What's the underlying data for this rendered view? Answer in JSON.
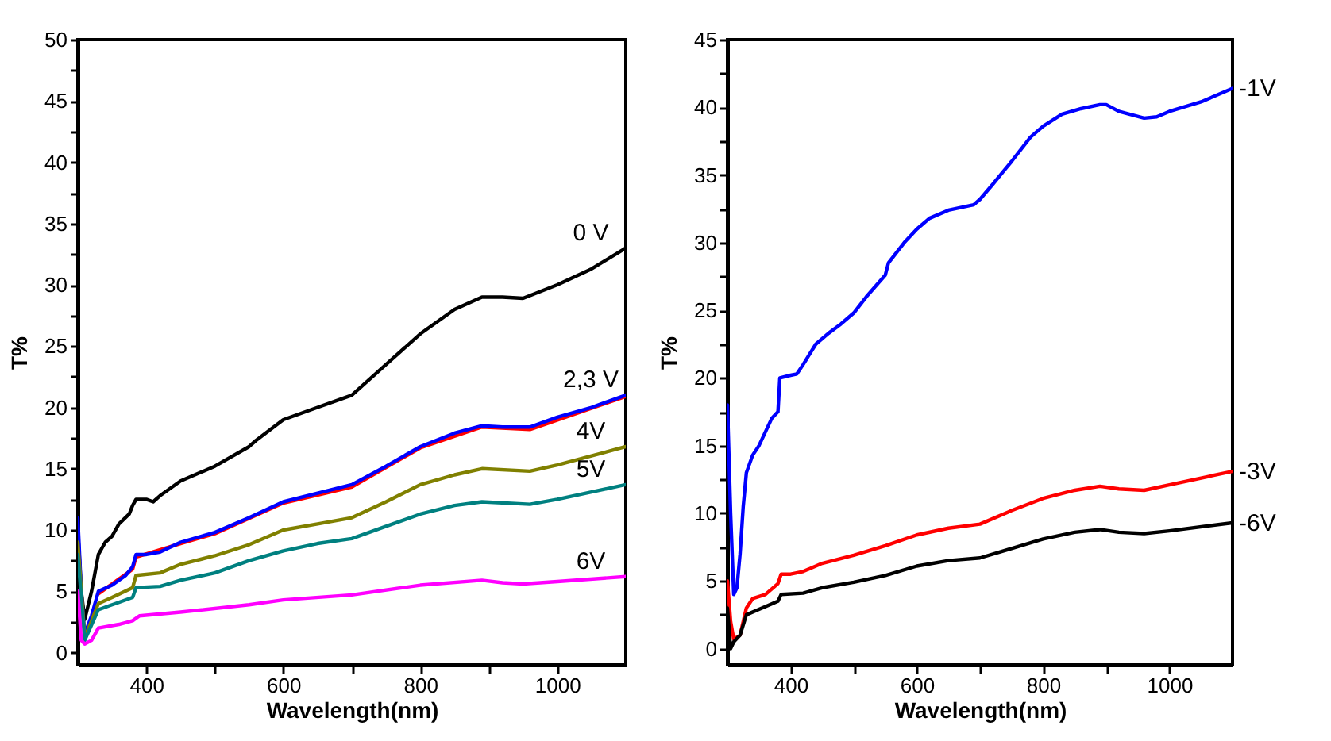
{
  "chart_data": [
    {
      "type": "line",
      "xlabel": "Wavelength(nm)",
      "ylabel": "T%",
      "xlim": [
        300,
        1100
      ],
      "ylim": [
        -1,
        50
      ],
      "xticks": [
        400,
        {
          "value": 500,
          "label": null
        },
        600,
        {
          "value": 700,
          "label": null
        },
        800,
        {
          "value": 900,
          "label": null
        },
        1000
      ],
      "yticks": [
        0,
        {
          "value": 2.5,
          "label": null
        },
        5,
        {
          "value": 7.5,
          "label": null
        },
        10,
        {
          "value": 12.5,
          "label": null
        },
        15,
        {
          "value": 17.5,
          "label": null
        },
        20,
        {
          "value": 22.5,
          "label": null
        },
        25,
        {
          "value": 27.5,
          "label": null
        },
        30,
        {
          "value": 32.5,
          "label": null
        },
        35,
        {
          "value": 37.5,
          "label": null
        },
        40,
        {
          "value": 42.5,
          "label": null
        },
        45,
        {
          "value": 47.5,
          "label": null
        },
        50
      ],
      "grid": false,
      "legend": false,
      "series": [
        {
          "name": "0 V",
          "color": "#000000",
          "x": [
            300,
            305,
            310,
            320,
            330,
            340,
            350,
            360,
            375,
            380,
            385,
            400,
            410,
            420,
            450,
            500,
            550,
            560,
            600,
            650,
            700,
            750,
            800,
            850,
            890,
            920,
            950,
            1000,
            1050,
            1100
          ],
          "values": [
            10,
            5,
            2.7,
            5,
            8,
            9,
            9.5,
            10.5,
            11.3,
            12,
            12.5,
            12.5,
            12.3,
            12.8,
            14,
            15.2,
            16.8,
            17.3,
            19,
            20,
            21,
            23.5,
            26,
            28,
            29,
            29,
            28.9,
            30,
            31.3,
            33
          ]
        },
        {
          "color": "#ff0000",
          "x": [
            330,
            380,
            385,
            450,
            500,
            600,
            700,
            800,
            890,
            960,
            1100
          ],
          "values": [
            4.8,
            6.8,
            7.8,
            8.9,
            9.7,
            12.2,
            13.5,
            16.7,
            18.4,
            18.2,
            20.9
          ]
        },
        {
          "name": "2,3 V",
          "color": "#0000ff",
          "x": [
            300,
            305,
            310,
            320,
            330,
            350,
            370,
            380,
            385,
            400,
            420,
            450,
            500,
            550,
            600,
            650,
            700,
            750,
            800,
            850,
            890,
            920,
            960,
            1000,
            1050,
            1100
          ],
          "values": [
            11,
            5,
            1.5,
            3,
            5,
            5.5,
            6.3,
            7,
            8,
            8,
            8.2,
            9,
            9.8,
            11,
            12.3,
            13,
            13.7,
            15.2,
            16.8,
            17.9,
            18.5,
            18.4,
            18.4,
            19.2,
            20,
            21
          ]
        },
        {
          "name": "4V",
          "color": "#808000",
          "x": [
            300,
            310,
            330,
            350,
            380,
            385,
            420,
            450,
            500,
            550,
            600,
            650,
            700,
            750,
            800,
            850,
            890,
            960,
            1000,
            1100
          ],
          "values": [
            9,
            1.2,
            4,
            4.5,
            5.3,
            6.3,
            6.5,
            7.2,
            7.9,
            8.8,
            10,
            10.5,
            11,
            12.3,
            13.7,
            14.5,
            15,
            14.8,
            15.3,
            16.8
          ]
        },
        {
          "name": "5V",
          "color": "#008080",
          "x": [
            300,
            310,
            330,
            350,
            380,
            385,
            420,
            450,
            500,
            550,
            600,
            650,
            700,
            750,
            800,
            850,
            890,
            960,
            1000,
            1100
          ],
          "values": [
            8,
            1,
            3.5,
            3.9,
            4.5,
            5.3,
            5.4,
            5.9,
            6.5,
            7.5,
            8.3,
            8.9,
            9.3,
            10.3,
            11.3,
            12,
            12.3,
            12.1,
            12.5,
            13.7
          ]
        },
        {
          "name": "6V",
          "color": "#ff00ff",
          "x": [
            300,
            305,
            310,
            320,
            330,
            360,
            380,
            390,
            450,
            550,
            600,
            700,
            800,
            890,
            920,
            950,
            1000,
            1100
          ],
          "values": [
            5,
            1,
            0.7,
            1,
            2,
            2.3,
            2.6,
            3,
            3.3,
            3.9,
            4.3,
            4.7,
            5.5,
            5.9,
            5.7,
            5.6,
            5.8,
            6.2
          ]
        }
      ]
    },
    {
      "type": "line",
      "xlabel": "Wavelength(nm)",
      "ylabel": "T%",
      "xlim": [
        300,
        1100
      ],
      "ylim": [
        -1.2,
        45
      ],
      "xticks": [
        400,
        {
          "value": 500,
          "label": null
        },
        600,
        {
          "value": 700,
          "label": null
        },
        800,
        {
          "value": 900,
          "label": null
        },
        1000
      ],
      "yticks": [
        0,
        {
          "value": 2.5,
          "label": null
        },
        5,
        {
          "value": 7.5,
          "label": null
        },
        10,
        {
          "value": 12.5,
          "label": null
        },
        15,
        {
          "value": 17.5,
          "label": null
        },
        20,
        {
          "value": 22.5,
          "label": null
        },
        25,
        {
          "value": 27.5,
          "label": null
        },
        30,
        {
          "value": 32.5,
          "label": null
        },
        35,
        {
          "value": 37.5,
          "label": null
        },
        40,
        {
          "value": 42.5,
          "label": null
        },
        45
      ],
      "grid": false,
      "legend": false,
      "series": [
        {
          "name": "-1V",
          "color": "#0000ff",
          "x": [
            300,
            305,
            310,
            315,
            320,
            325,
            330,
            340,
            350,
            360,
            370,
            380,
            383,
            400,
            410,
            420,
            440,
            460,
            480,
            500,
            520,
            550,
            555,
            580,
            600,
            620,
            650,
            690,
            700,
            720,
            750,
            780,
            800,
            830,
            860,
            890,
            900,
            920,
            960,
            980,
            1000,
            1050,
            1100
          ],
          "values": [
            18,
            10,
            4,
            4.5,
            7,
            10.5,
            13,
            14.3,
            15,
            16,
            17,
            17.5,
            20,
            20.2,
            20.3,
            21,
            22.5,
            23.3,
            24,
            24.8,
            26,
            27.6,
            28.5,
            30,
            31,
            31.8,
            32.4,
            32.8,
            33.2,
            34.3,
            36,
            37.8,
            38.6,
            39.5,
            39.9,
            40.2,
            40.2,
            39.7,
            39.2,
            39.3,
            39.7,
            40.4,
            41.4
          ]
        },
        {
          "name": "-3V",
          "color": "#ff0000",
          "x": [
            300,
            305,
            310,
            320,
            330,
            340,
            360,
            380,
            385,
            400,
            420,
            450,
            500,
            550,
            600,
            650,
            700,
            750,
            800,
            850,
            890,
            920,
            960,
            1000,
            1100
          ],
          "values": [
            5,
            2,
            0.7,
            1,
            3,
            3.7,
            4,
            4.8,
            5.5,
            5.5,
            5.7,
            6.3,
            6.9,
            7.6,
            8.4,
            8.9,
            9.2,
            10.2,
            11.1,
            11.7,
            12,
            11.8,
            11.7,
            12.1,
            13.1
          ]
        },
        {
          "name": "-6V",
          "color": "#000000",
          "x": [
            300,
            305,
            310,
            320,
            330,
            350,
            380,
            385,
            420,
            450,
            500,
            550,
            600,
            650,
            700,
            750,
            800,
            850,
            890,
            920,
            960,
            1000,
            1100
          ],
          "values": [
            3,
            0,
            0.5,
            1,
            2.5,
            2.9,
            3.5,
            4,
            4.1,
            4.5,
            4.9,
            5.4,
            6.1,
            6.5,
            6.7,
            7.4,
            8.1,
            8.6,
            8.8,
            8.6,
            8.5,
            8.7,
            9.3
          ]
        }
      ]
    }
  ]
}
